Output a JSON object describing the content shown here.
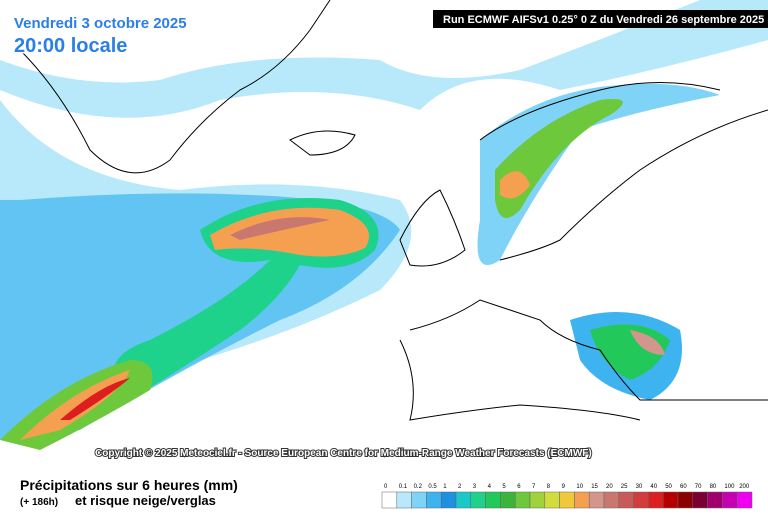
{
  "header": {
    "date": "Vendredi 3 octobre 2025",
    "time": "20:00 locale",
    "run": "Run ECMWF AIFSv1 0.25° 0 Z du Vendredi 26 septembre 2025"
  },
  "copyright": "Copyright © 2025 Meteociel.fr - Source European Centre for Medium-Range Weather Forecasts (ECMWF)",
  "legend": {
    "title": "Précipitations sur 6 heures (mm)",
    "lead": "(+ 186h)",
    "subtitle": "et risque neige/verglas",
    "items": [
      {
        "label": "0",
        "color": "#ffffff"
      },
      {
        "label": "0.1",
        "color": "#b7e9fb"
      },
      {
        "label": "0.2",
        "color": "#7fd3f7"
      },
      {
        "label": "0.5",
        "color": "#3db4f0"
      },
      {
        "label": "1",
        "color": "#1f8fe0"
      },
      {
        "label": "2",
        "color": "#19c8c8"
      },
      {
        "label": "3",
        "color": "#1ed28c"
      },
      {
        "label": "4",
        "color": "#23c85a"
      },
      {
        "label": "5",
        "color": "#3cb43c"
      },
      {
        "label": "6",
        "color": "#6ec83c"
      },
      {
        "label": "7",
        "color": "#a0d23c"
      },
      {
        "label": "8",
        "color": "#d2dc3c"
      },
      {
        "label": "9",
        "color": "#f0c83c"
      },
      {
        "label": "10",
        "color": "#f5a050"
      },
      {
        "label": "15",
        "color": "#d2968c"
      },
      {
        "label": "20",
        "color": "#c8786e"
      },
      {
        "label": "25",
        "color": "#c85a5a"
      },
      {
        "label": "30",
        "color": "#d23c3c"
      },
      {
        "label": "40",
        "color": "#dc1e1e"
      },
      {
        "label": "50",
        "color": "#b40000"
      },
      {
        "label": "60",
        "color": "#8c0000"
      },
      {
        "label": "70",
        "color": "#780032"
      },
      {
        "label": "80",
        "color": "#a0006e"
      },
      {
        "label": "100",
        "color": "#c800b4"
      },
      {
        "label": "200",
        "color": "#f000f0"
      }
    ]
  }
}
